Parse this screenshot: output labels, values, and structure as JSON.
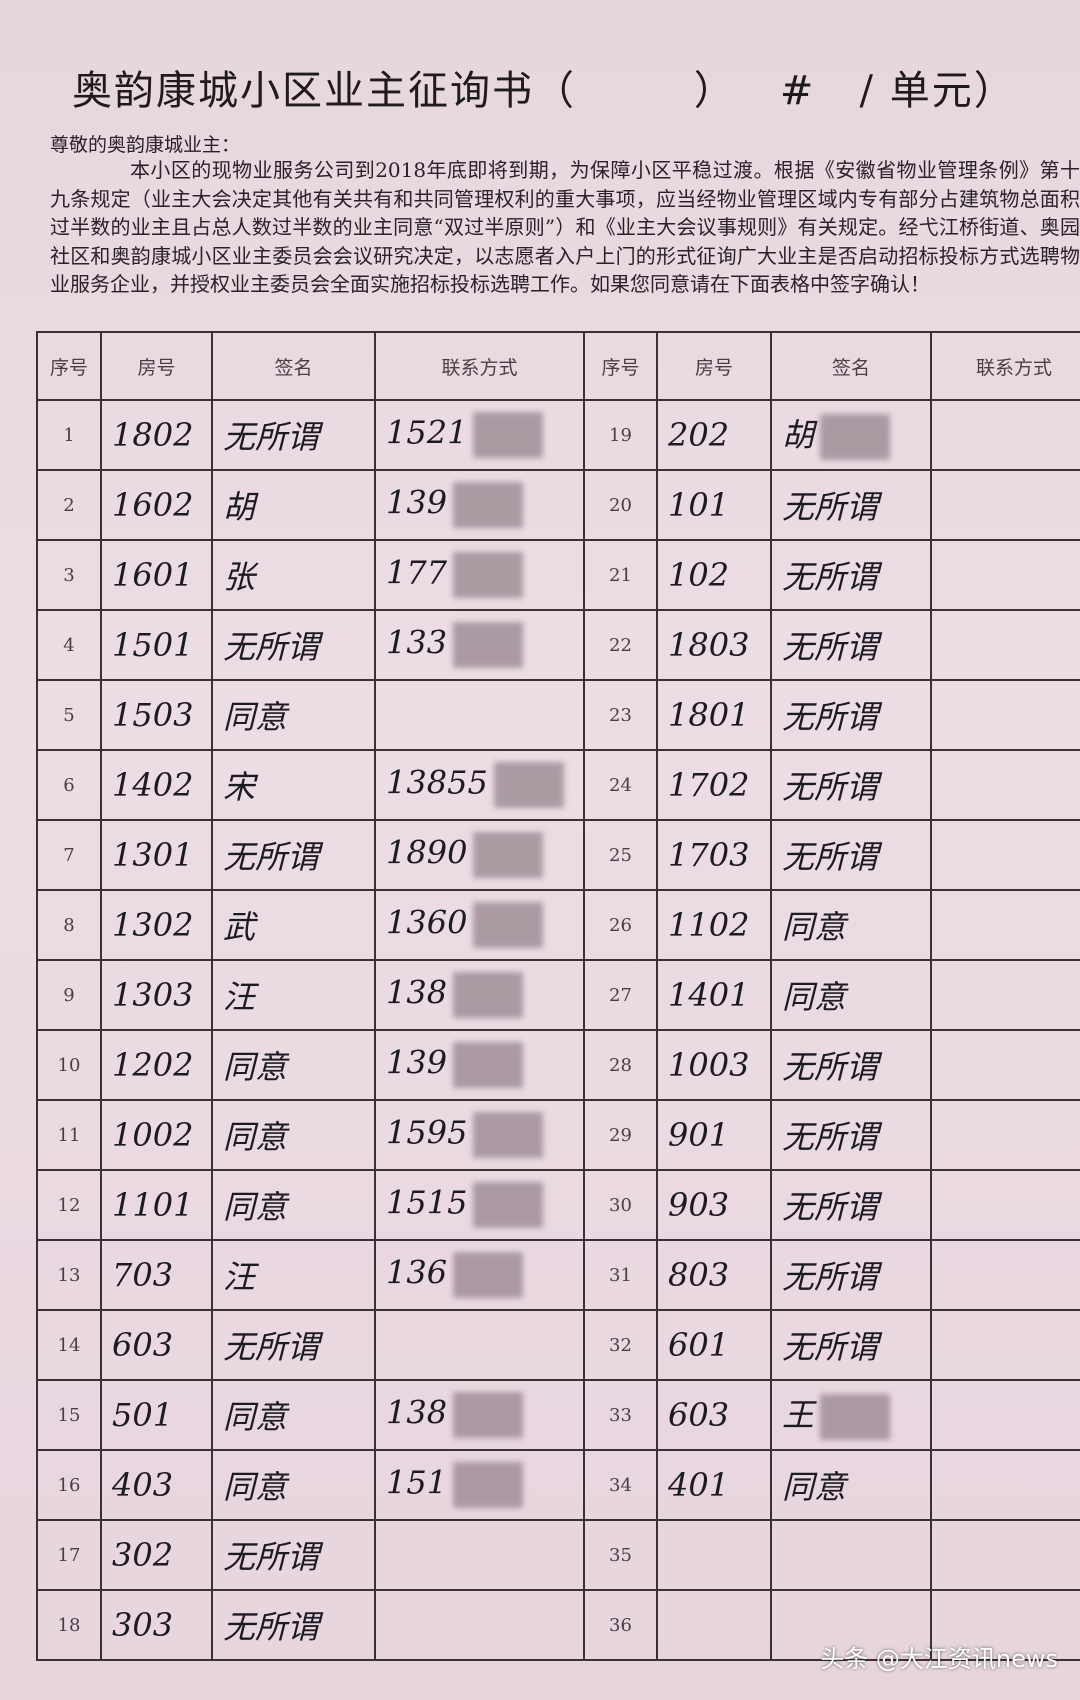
{
  "title": {
    "main": "奥韵康城小区业主征询书（",
    "paren_close": "）",
    "hash": "#",
    "unit_mark": "/",
    "unit": "单元）"
  },
  "greeting": "尊敬的奥韵康城业主：",
  "paragraph": "本小区的现物业服务公司到2018年底即将到期，为保障小区平稳过渡。根据《安徽省物业管理条例》第十九条规定（业主大会决定其他有关共有和共同管理权利的重大事项，应当经物业管理区域内专有部分占建筑物总面积过半数的业主且占总人数过半数的业主同意“双过半原则”）和《业主大会议事规则》有关规定。经弋江桥街道、奥园社区和奥韵康城小区业主委员会会议研究决定，以志愿者入户上门的形式征询广大业主是否启动招标投标方式选聘物业服务企业，并授权业主委员会全面实施招标投标选聘工作。如果您同意请在下面表格中签字确认！",
  "table": {
    "headers": [
      "序号",
      "房号",
      "签名",
      "联系方式",
      "序号",
      "房号",
      "签名",
      "联系方式"
    ],
    "left_rows": [
      {
        "no": "1",
        "room": "1802",
        "sign": "无所谓",
        "contact": "1521",
        "blur": true
      },
      {
        "no": "2",
        "room": "1602",
        "sign": "胡",
        "contact": "139",
        "blur": true
      },
      {
        "no": "3",
        "room": "1601",
        "sign": "张",
        "contact": "177",
        "blur": true
      },
      {
        "no": "4",
        "room": "1501",
        "sign": "无所谓",
        "contact": "133",
        "blur": true
      },
      {
        "no": "5",
        "room": "1503",
        "sign": "同意",
        "contact": "",
        "blur": false
      },
      {
        "no": "6",
        "room": "1402",
        "sign": "宋",
        "contact": "13855",
        "blur": true
      },
      {
        "no": "7",
        "room": "1301",
        "sign": "无所谓",
        "contact": "1890",
        "blur": true
      },
      {
        "no": "8",
        "room": "1302",
        "sign": "武",
        "contact": "1360",
        "blur": true
      },
      {
        "no": "9",
        "room": "1303",
        "sign": "汪",
        "contact": "138",
        "blur": true
      },
      {
        "no": "10",
        "room": "1202",
        "sign": "同意",
        "contact": "139",
        "blur": true
      },
      {
        "no": "11",
        "room": "1002",
        "sign": "同意",
        "contact": "1595",
        "blur": true
      },
      {
        "no": "12",
        "room": "1101",
        "sign": "同意",
        "contact": "1515",
        "blur": true
      },
      {
        "no": "13",
        "room": "703",
        "sign": "汪",
        "contact": "136",
        "blur": true
      },
      {
        "no": "14",
        "room": "603",
        "sign": "无所谓",
        "contact": "",
        "blur": false
      },
      {
        "no": "15",
        "room": "501",
        "sign": "同意",
        "contact": "138",
        "blur": true
      },
      {
        "no": "16",
        "room": "403",
        "sign": "同意",
        "contact": "151",
        "blur": true
      },
      {
        "no": "17",
        "room": "302",
        "sign": "无所谓",
        "contact": "",
        "blur": false
      },
      {
        "no": "18",
        "room": "303",
        "sign": "无所谓",
        "contact": "",
        "blur": false
      }
    ],
    "right_rows": [
      {
        "no": "19",
        "room": "202",
        "sign": "胡",
        "contact": "",
        "blur": true
      },
      {
        "no": "20",
        "room": "101",
        "sign": "无所谓",
        "contact": "",
        "blur": false
      },
      {
        "no": "21",
        "room": "102",
        "sign": "无所谓",
        "contact": "",
        "blur": false
      },
      {
        "no": "22",
        "room": "1803",
        "sign": "无所谓",
        "contact": "",
        "blur": false
      },
      {
        "no": "23",
        "room": "1801",
        "sign": "无所谓",
        "contact": "",
        "blur": false
      },
      {
        "no": "24",
        "room": "1702",
        "sign": "无所谓",
        "contact": "",
        "blur": false
      },
      {
        "no": "25",
        "room": "1703",
        "sign": "无所谓",
        "contact": "",
        "blur": false
      },
      {
        "no": "26",
        "room": "1102",
        "sign": "同意",
        "contact": "",
        "blur": false
      },
      {
        "no": "27",
        "room": "1401",
        "sign": "同意",
        "contact": "",
        "blur": false
      },
      {
        "no": "28",
        "room": "1003",
        "sign": "无所谓",
        "contact": "",
        "blur": false
      },
      {
        "no": "29",
        "room": "901",
        "sign": "无所谓",
        "contact": "",
        "blur": false
      },
      {
        "no": "30",
        "room": "903",
        "sign": "无所谓",
        "contact": "",
        "blur": false
      },
      {
        "no": "31",
        "room": "803",
        "sign": "无所谓",
        "contact": "",
        "blur": false
      },
      {
        "no": "32",
        "room": "601",
        "sign": "无所谓",
        "contact": "",
        "blur": false
      },
      {
        "no": "33",
        "room": "603",
        "sign": "王",
        "contact": "",
        "blur": true
      },
      {
        "no": "34",
        "room": "401",
        "sign": "同意",
        "contact": "",
        "blur": false
      },
      {
        "no": "35",
        "room": "",
        "sign": "",
        "contact": "",
        "blur": false
      },
      {
        "no": "36",
        "room": "",
        "sign": "",
        "contact": "",
        "blur": false
      }
    ]
  },
  "watermark": "头条 @大江资讯news"
}
